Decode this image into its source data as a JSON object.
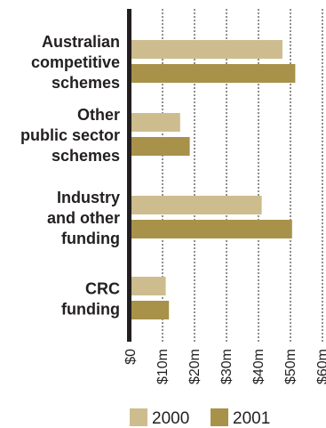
{
  "chart_data": {
    "type": "bar",
    "orientation": "horizontal",
    "categories": [
      [
        "Australian",
        "competitive",
        "schemes"
      ],
      [
        "Other",
        "public sector",
        "schemes"
      ],
      [
        "Industry",
        "and other",
        "funding"
      ],
      [
        "CRC",
        "funding"
      ]
    ],
    "series": [
      {
        "name": "2000",
        "color": "#cdbd8e",
        "values": [
          47.5,
          15.5,
          41,
          11
        ]
      },
      {
        "name": "2001",
        "color": "#a8924a",
        "values": [
          51.5,
          18.5,
          50.5,
          12
        ]
      }
    ],
    "xlim": [
      0,
      60
    ],
    "ticks": [
      0,
      10,
      20,
      30,
      40,
      50,
      60
    ],
    "tick_labels": [
      "$0",
      "$10m",
      "$20m",
      "$30m",
      "$40m",
      "$50m",
      "$60m"
    ],
    "title": "",
    "xlabel": "",
    "ylabel": "",
    "grid": "vertical dashed lines",
    "legend": "bottom"
  }
}
